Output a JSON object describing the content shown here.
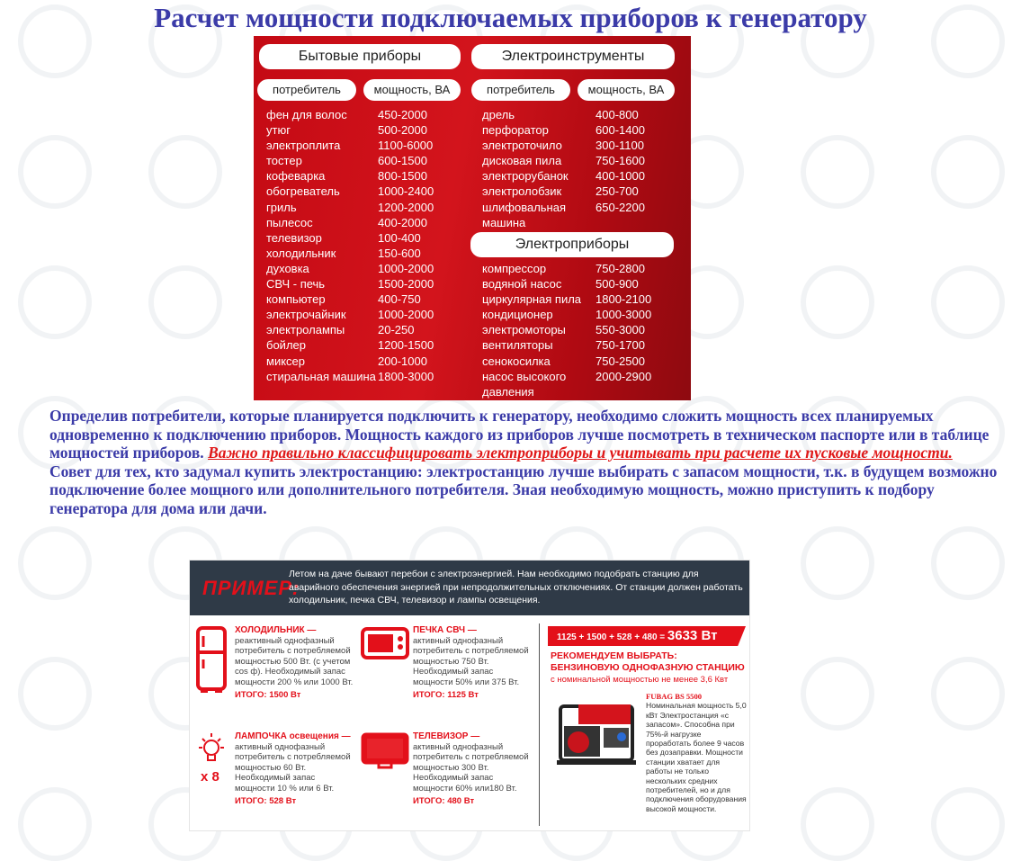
{
  "watermark": "ТЕХНОСОЮЗ",
  "title": "Расчет мощности подключаемых приборов к генератору",
  "table": {
    "household": {
      "title": "Бытовые приборы",
      "col1": "потребитель",
      "col2": "мощность, ВА",
      "rows": [
        [
          "фен для волос",
          "450-2000"
        ],
        [
          "утюг",
          "500-2000"
        ],
        [
          "электроплита",
          "1100-6000"
        ],
        [
          "тостер",
          "600-1500"
        ],
        [
          "кофеварка",
          "800-1500"
        ],
        [
          "обогреватель",
          "1000-2400"
        ],
        [
          "гриль",
          "1200-2000"
        ],
        [
          "пылесос",
          "400-2000"
        ],
        [
          "телевизор",
          "100-400"
        ],
        [
          "холодильник",
          "150-600"
        ],
        [
          "духовка",
          "1000-2000"
        ],
        [
          "СВЧ - печь",
          "1500-2000"
        ],
        [
          "компьютер",
          "400-750"
        ],
        [
          "электрочайник",
          "1000-2000"
        ],
        [
          "электролампы",
          "20-250"
        ],
        [
          "бойлер",
          "1200-1500"
        ],
        [
          "миксер",
          "200-1000"
        ],
        [
          "стиральная машина",
          "1800-3000"
        ]
      ]
    },
    "tools": {
      "title": "Электроинструменты",
      "col1": "потребитель",
      "col2": "мощность, ВА",
      "rows": [
        [
          "дрель",
          "400-800"
        ],
        [
          "перфоратор",
          "600-1400"
        ],
        [
          "электроточило",
          "300-1100"
        ],
        [
          "дисковая пила",
          "750-1600"
        ],
        [
          "электрорубанок",
          "400-1000"
        ],
        [
          "электролобзик",
          "250-700"
        ],
        [
          "шлифовальная машина",
          "650-2200"
        ]
      ]
    },
    "appliances": {
      "title": "Электроприборы",
      "rows": [
        [
          "компрессор",
          "750-2800"
        ],
        [
          "водяной насос",
          "500-900"
        ],
        [
          "циркулярная пила",
          "1800-2100"
        ],
        [
          "кондиционер",
          "1000-3000"
        ],
        [
          "электромоторы",
          "550-3000"
        ],
        [
          "вентиляторы",
          "750-1700"
        ],
        [
          "сенокосилка",
          "750-2500"
        ],
        [
          "насос высокого давления",
          "2000-2900"
        ]
      ]
    }
  },
  "text": {
    "p1": "Определив потребители, которые планируется подключить к генератору, необходимо сложить мощность всех планируемых одновременно к подключению приборов. Мощность каждого из приборов лучше посмотреть в техническом паспорте или в таблице мощностей приборов. ",
    "p1_link": "Важно правильно классифицировать электроприборы и учитывать при расчете их пусковые мощности.",
    "p2": "Совет для тех, кто задумал купить электростанцию: электростанцию лучше выбирать с запасом мощности, т.к. в будущем возможно подключение более мощного или дополнительного потребителя. Зная необходимую мощность, можно приступить к подбору генератора для дома или дачи."
  },
  "example": {
    "label": "ПРИМЕР:",
    "intro": "Летом на даче бывают перебои с электроэнергией. Нам необходимо подобрать станцию для аварийного обеспечения энергией при непродолжительных отключениях. От станции должен работать холодильник, печка СВЧ, телевизор и лампы освещения.",
    "items": [
      {
        "title": "ХОЛОДИЛЬНИК —",
        "desc": "реактивный однофазный потребитель с потребляемой мощностью 500 Вт. (с учетом cos ф). Необходимый запас мощности 200 % или 1000 Вт.",
        "total": "ИТОГО: 1500 Вт",
        "icon": "fridge-icon"
      },
      {
        "title": "ПЕЧКА СВЧ —",
        "desc": "активный однофазный потребитель с потребляемой мощностью 750 Вт. Необходимый запас мощности 50% или 375 Вт.",
        "total": "ИТОГО: 1125 Вт",
        "icon": "microwave-icon"
      },
      {
        "title": "ЛАМПОЧКА освещения —",
        "desc": "активный однофазный потребитель с потребляемой мощностью 60 Вт. Необходимый запас мощности 10 % или 6 Вт.",
        "total": "ИТОГО: 528 Вт",
        "icon": "lightbulb-icon",
        "multiplier": "x 8"
      },
      {
        "title": "ТЕЛЕВИЗОР —",
        "desc": "активный однофазный потребитель с потребляемой мощностью 300 Вт. Необходимый запас мощности 60% или180 Вт.",
        "total": "ИТОГО: 480 Вт",
        "icon": "tv-icon"
      }
    ],
    "formula": "1125 + 1500 + 528 + 480 =",
    "formula_result": "3633 Вт",
    "recommend_line1": "РЕКОМЕНДУЕМ ВЫБРАТЬ:",
    "recommend_line2": "БЕНЗИНОВУЮ ОДНОФАЗНУЮ СТАНЦИЮ",
    "recommend_sub": "с номинальной мощностью не менее 3,6 Квт",
    "model": "FUBAG BS 5500",
    "model_desc": "Номинальная мощность 5,0 кВт Электростанция «с запасом». Способна при 75%-й нагрузке проработать более 9 часов без дозаправки. Мощности станции хватает для работы не только нескольких средних потребителей, но и для подключения оборудования высокой мощности.",
    "accent": "#e3101a"
  },
  "colors": {
    "title": "#3b3ba8",
    "link": "#e01818",
    "table_bg": "#c40a14",
    "example_header": "#2f3a47"
  }
}
